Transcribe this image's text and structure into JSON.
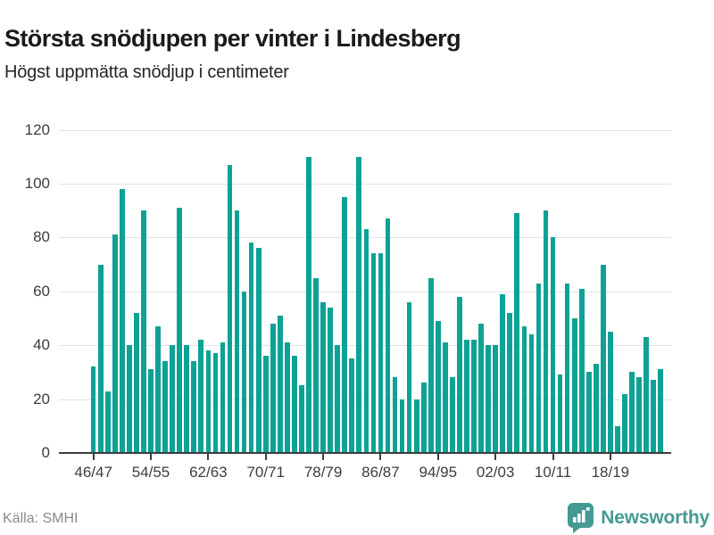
{
  "header": {
    "title": "Största snödjupen per vinter i Lindesberg",
    "subtitle": "Högst uppmätta snödjup i centimeter"
  },
  "footer": {
    "source": "Källa: SMHI",
    "brand": "Newsworthy"
  },
  "colors": {
    "bar": "#0da295",
    "axis": "#3d3d3d",
    "grid": "#e2e2e2",
    "brand_teal": "#459a93",
    "source_gray": "#8a8a8a"
  },
  "chart_data": {
    "type": "bar",
    "title": "Största snödjupen per vinter i Lindesberg",
    "subtitle": "Högst uppmätta snödjup i centimeter",
    "xlabel": "",
    "ylabel": "Snödjup i centimeter",
    "ylim": [
      0,
      120
    ],
    "yticks": [
      0,
      20,
      40,
      60,
      80,
      100,
      120
    ],
    "grid": true,
    "legend_position": "none",
    "x_tick_labels": [
      "46/47",
      "54/55",
      "62/63",
      "70/71",
      "78/79",
      "86/87",
      "94/95",
      "02/03",
      "10/11",
      "18/19"
    ],
    "x_tick_step": 8,
    "categories": [
      "46/47",
      "47/48",
      "48/49",
      "49/50",
      "50/51",
      "51/52",
      "52/53",
      "53/54",
      "54/55",
      "55/56",
      "56/57",
      "57/58",
      "58/59",
      "59/60",
      "60/61",
      "61/62",
      "62/63",
      "63/64",
      "64/65",
      "65/66",
      "66/67",
      "67/68",
      "68/69",
      "69/70",
      "70/71",
      "71/72",
      "72/73",
      "73/74",
      "74/75",
      "75/76",
      "76/77",
      "77/78",
      "78/79",
      "79/80",
      "80/81",
      "81/82",
      "82/83",
      "83/84",
      "84/85",
      "85/86",
      "86/87",
      "87/88",
      "88/89",
      "89/90",
      "90/91",
      "91/92",
      "92/93",
      "93/94",
      "94/95",
      "95/96",
      "96/97",
      "97/98",
      "98/99",
      "99/00",
      "00/01",
      "01/02",
      "02/03",
      "03/04",
      "04/05",
      "05/06",
      "06/07",
      "07/08",
      "08/09",
      "09/10",
      "10/11",
      "11/12",
      "12/13",
      "13/14",
      "14/15",
      "15/16",
      "16/17",
      "17/18",
      "18/19",
      "19/20",
      "20/21",
      "21/22",
      "22/23",
      "23/24",
      "24/25",
      "25/26"
    ],
    "values": [
      32,
      70,
      23,
      81,
      98,
      40,
      52,
      90,
      31,
      47,
      34,
      40,
      91,
      40,
      34,
      42,
      38,
      37,
      41,
      107,
      90,
      60,
      78,
      76,
      36,
      48,
      51,
      41,
      36,
      25,
      110,
      65,
      56,
      54,
      40,
      95,
      35,
      110,
      83,
      74,
      74,
      87,
      28,
      20,
      56,
      20,
      26,
      65,
      49,
      41,
      28,
      58,
      42,
      42,
      48,
      40,
      40,
      59,
      52,
      89,
      47,
      44,
      63,
      90,
      80,
      29,
      63,
      50,
      61,
      30,
      33,
      70,
      45,
      10,
      22,
      30,
      28,
      43,
      27,
      31
    ]
  }
}
